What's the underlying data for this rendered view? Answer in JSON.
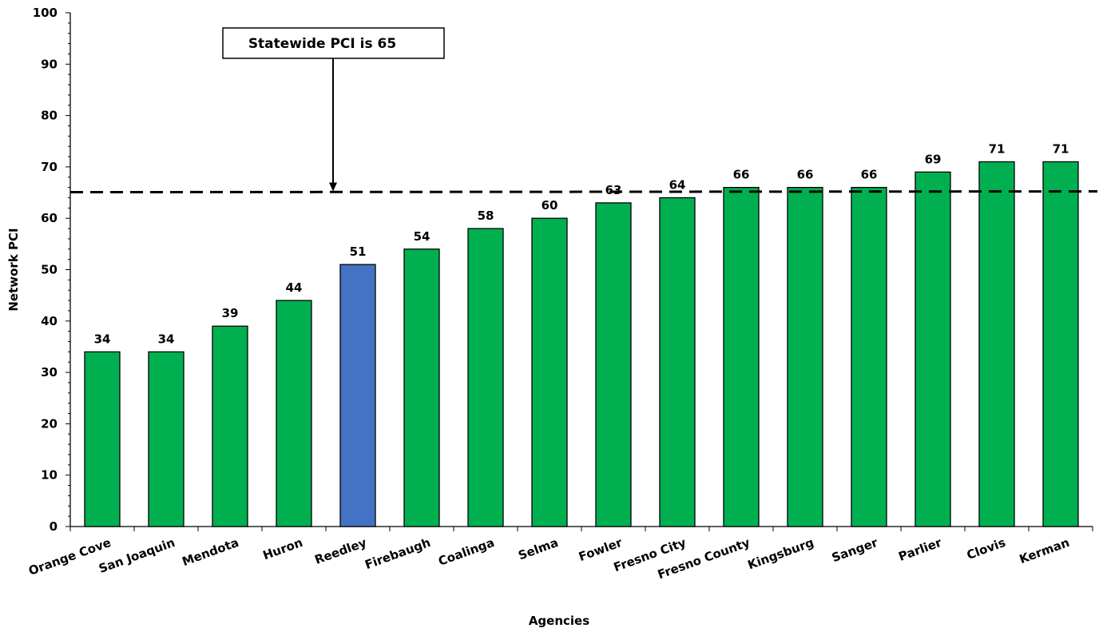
{
  "chart_data": {
    "type": "bar",
    "categories": [
      "Orange Cove",
      "San Joaquin",
      "Mendota",
      "Huron",
      "Reedley",
      "Firebaugh",
      "Coalinga",
      "Selma",
      "Fowler",
      "Fresno City",
      "Fresno County",
      "Kingsburg",
      "Sanger",
      "Parlier",
      "Clovis",
      "Kerman"
    ],
    "values": [
      34,
      34,
      39,
      44,
      51,
      54,
      58,
      60,
      63,
      64,
      66,
      66,
      66,
      69,
      71,
      71
    ],
    "highlight_category": "Reedley",
    "xlabel": "Agencies",
    "ylabel": "Network PCI",
    "ylim": [
      0,
      100
    ],
    "yticks": [
      0,
      10,
      20,
      30,
      40,
      50,
      60,
      70,
      80,
      90,
      100
    ],
    "reference_line": {
      "value": 65,
      "style": "dashed",
      "label": "Statewide PCI is 65"
    },
    "colors": {
      "bar": "#00B050",
      "highlight": "#4472C4",
      "outline": "#000000"
    },
    "grid": false,
    "legend": "none"
  }
}
